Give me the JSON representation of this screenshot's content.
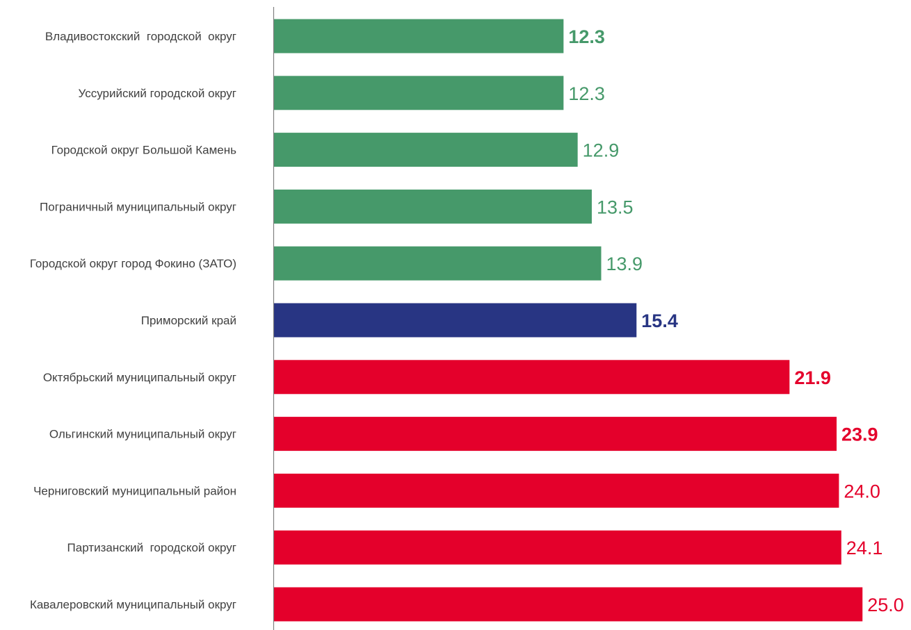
{
  "chart_data": {
    "type": "bar",
    "orientation": "horizontal",
    "title": "",
    "xlabel": "",
    "ylabel": "",
    "grid": false,
    "legend": "none",
    "xlim": [
      0,
      26
    ],
    "categories": [
      "Владивостокский  городской  округ",
      "Уссурийский городской округ",
      "Городской округ Большой Камень",
      "Пограничный муниципальный округ",
      "Городской округ город Фокино (ЗАТО)",
      "Приморский край",
      "Октябрьский муниципальный округ",
      "Ольгинский муниципальный округ",
      "Черниговский муниципальный район",
      "Партизанский  городской округ",
      "Кавалеровский муниципальный округ"
    ],
    "values": [
      12.3,
      12.3,
      12.9,
      13.5,
      13.9,
      15.4,
      21.9,
      23.9,
      24.0,
      24.1,
      25.0
    ],
    "value_labels": [
      "12.3",
      "12.3",
      "12.9",
      "13.5",
      "13.9",
      "15.4",
      "21.9",
      "23.9",
      "24.0",
      "24.1",
      "25.0"
    ],
    "bar_colors": [
      "#46996A",
      "#46996A",
      "#46996A",
      "#46996A",
      "#46996A",
      "#283583",
      "#E4002B",
      "#E4002B",
      "#E4002B",
      "#E4002B",
      "#E4002B"
    ],
    "label_colors": [
      "#46996A",
      "#46996A",
      "#46996A",
      "#46996A",
      "#46996A",
      "#283583",
      "#E4002B",
      "#E4002B",
      "#E4002B",
      "#E4002B",
      "#E4002B"
    ],
    "label_bold": [
      true,
      false,
      false,
      false,
      false,
      true,
      true,
      true,
      false,
      false,
      false
    ],
    "axis_color": "#808080",
    "category_label_color": "#404040"
  }
}
